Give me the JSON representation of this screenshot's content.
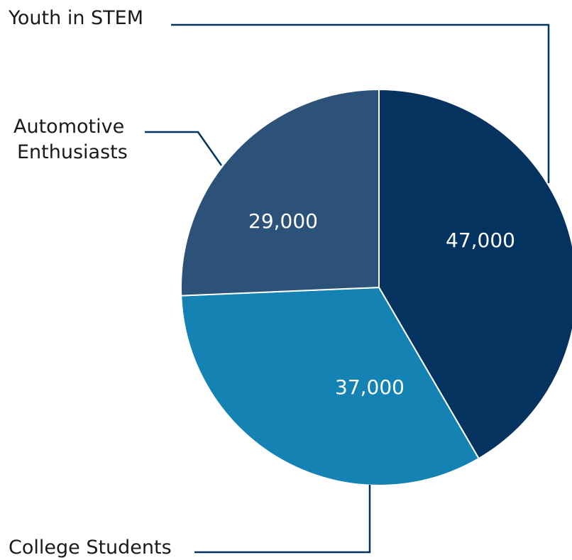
{
  "chart_data": {
    "type": "pie",
    "slices": [
      {
        "name": "Youth in STEM",
        "value": 47000,
        "label": "47,000",
        "color": "#04335f"
      },
      {
        "name": "College Students",
        "value": 37000,
        "label": "37,000",
        "color": "#1482b2"
      },
      {
        "name": "Automotive Enthusiasts",
        "value": 29000,
        "label": "29,000",
        "color": "#2c5279"
      }
    ],
    "start_angle_deg": 0,
    "direction": "clockwise",
    "legend": "callout labels with leader lines",
    "leader_color": "#04335f"
  },
  "labels": {
    "youth": "Youth in STEM",
    "automotive_line1": "Automotive",
    "automotive_line2": "Enthusiasts",
    "college": "College Students"
  }
}
